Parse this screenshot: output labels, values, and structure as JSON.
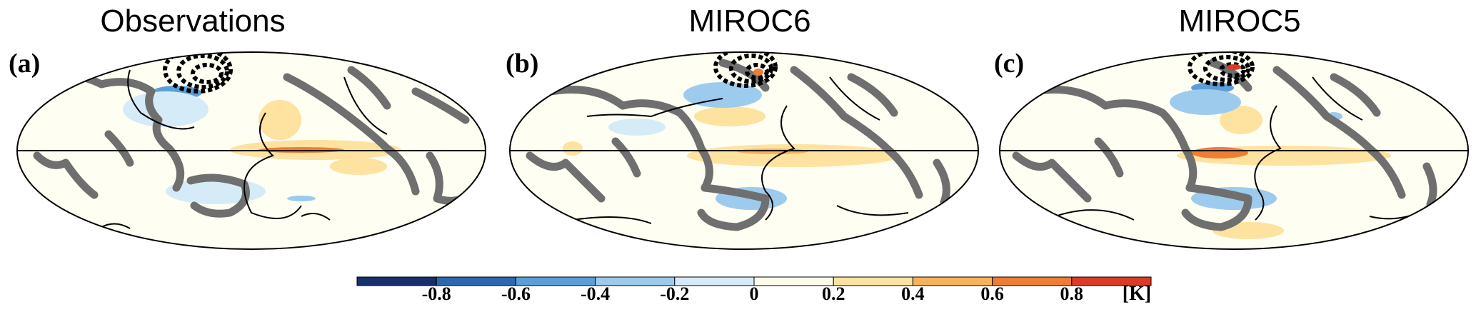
{
  "panels": [
    {
      "label": "(a)",
      "title": "Observations"
    },
    {
      "label": "(b)",
      "title": "MIROC6"
    },
    {
      "label": "(c)",
      "title": "MIROC5"
    }
  ],
  "colorbar": {
    "unit": "[K]",
    "tick_labels": [
      "-0.8",
      "-0.6",
      "-0.4",
      "-0.2",
      "0",
      "0.2",
      "0.4",
      "0.6",
      "0.8"
    ],
    "range": [
      -1.0,
      1.0
    ],
    "step": 0.2,
    "colors": [
      "#16306e",
      "#2c68b0",
      "#5c9fd8",
      "#9ccbee",
      "#d6ebf8",
      "#fffbea",
      "#fde2a0",
      "#f8b35a",
      "#ef7d33",
      "#dc3a26",
      "#a61f1c"
    ]
  },
  "colors": {
    "land": "#6f6f6f",
    "contour": "#000000",
    "frame": "#000000"
  }
}
